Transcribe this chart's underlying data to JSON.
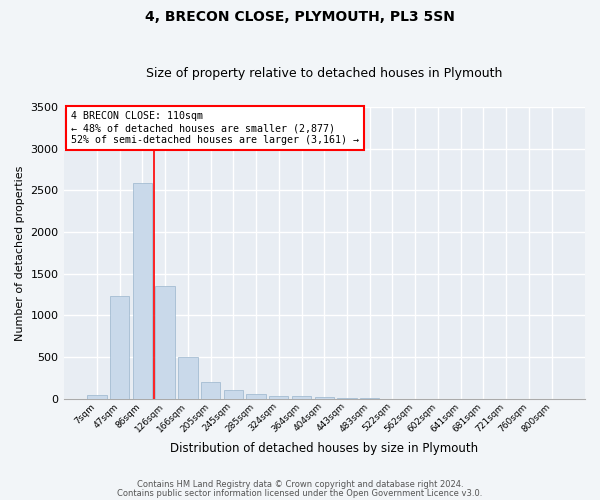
{
  "title": "4, BRECON CLOSE, PLYMOUTH, PL3 5SN",
  "subtitle": "Size of property relative to detached houses in Plymouth",
  "xlabel": "Distribution of detached houses by size in Plymouth",
  "ylabel": "Number of detached properties",
  "bar_color": "#c9d9ea",
  "bar_edge_color": "#9ab5cc",
  "fig_bg_color": "#f2f5f8",
  "ax_bg_color": "#e8edf3",
  "grid_color": "#ffffff",
  "categories": [
    "7sqm",
    "47sqm",
    "86sqm",
    "126sqm",
    "166sqm",
    "205sqm",
    "245sqm",
    "285sqm",
    "324sqm",
    "364sqm",
    "404sqm",
    "443sqm",
    "483sqm",
    "522sqm",
    "562sqm",
    "602sqm",
    "641sqm",
    "681sqm",
    "721sqm",
    "760sqm",
    "800sqm"
  ],
  "values": [
    50,
    1230,
    2590,
    1350,
    500,
    200,
    110,
    55,
    35,
    30,
    20,
    5,
    5,
    0,
    0,
    0,
    0,
    0,
    0,
    0,
    0
  ],
  "ylim": [
    0,
    3500
  ],
  "yticks": [
    0,
    500,
    1000,
    1500,
    2000,
    2500,
    3000,
    3500
  ],
  "vline_x": 2.5,
  "property_label": "4 BRECON CLOSE: 110sqm",
  "annotation_line1": "← 48% of detached houses are smaller (2,877)",
  "annotation_line2": "52% of semi-detached houses are larger (3,161) →",
  "footnote1": "Contains HM Land Registry data © Crown copyright and database right 2024.",
  "footnote2": "Contains public sector information licensed under the Open Government Licence v3.0."
}
